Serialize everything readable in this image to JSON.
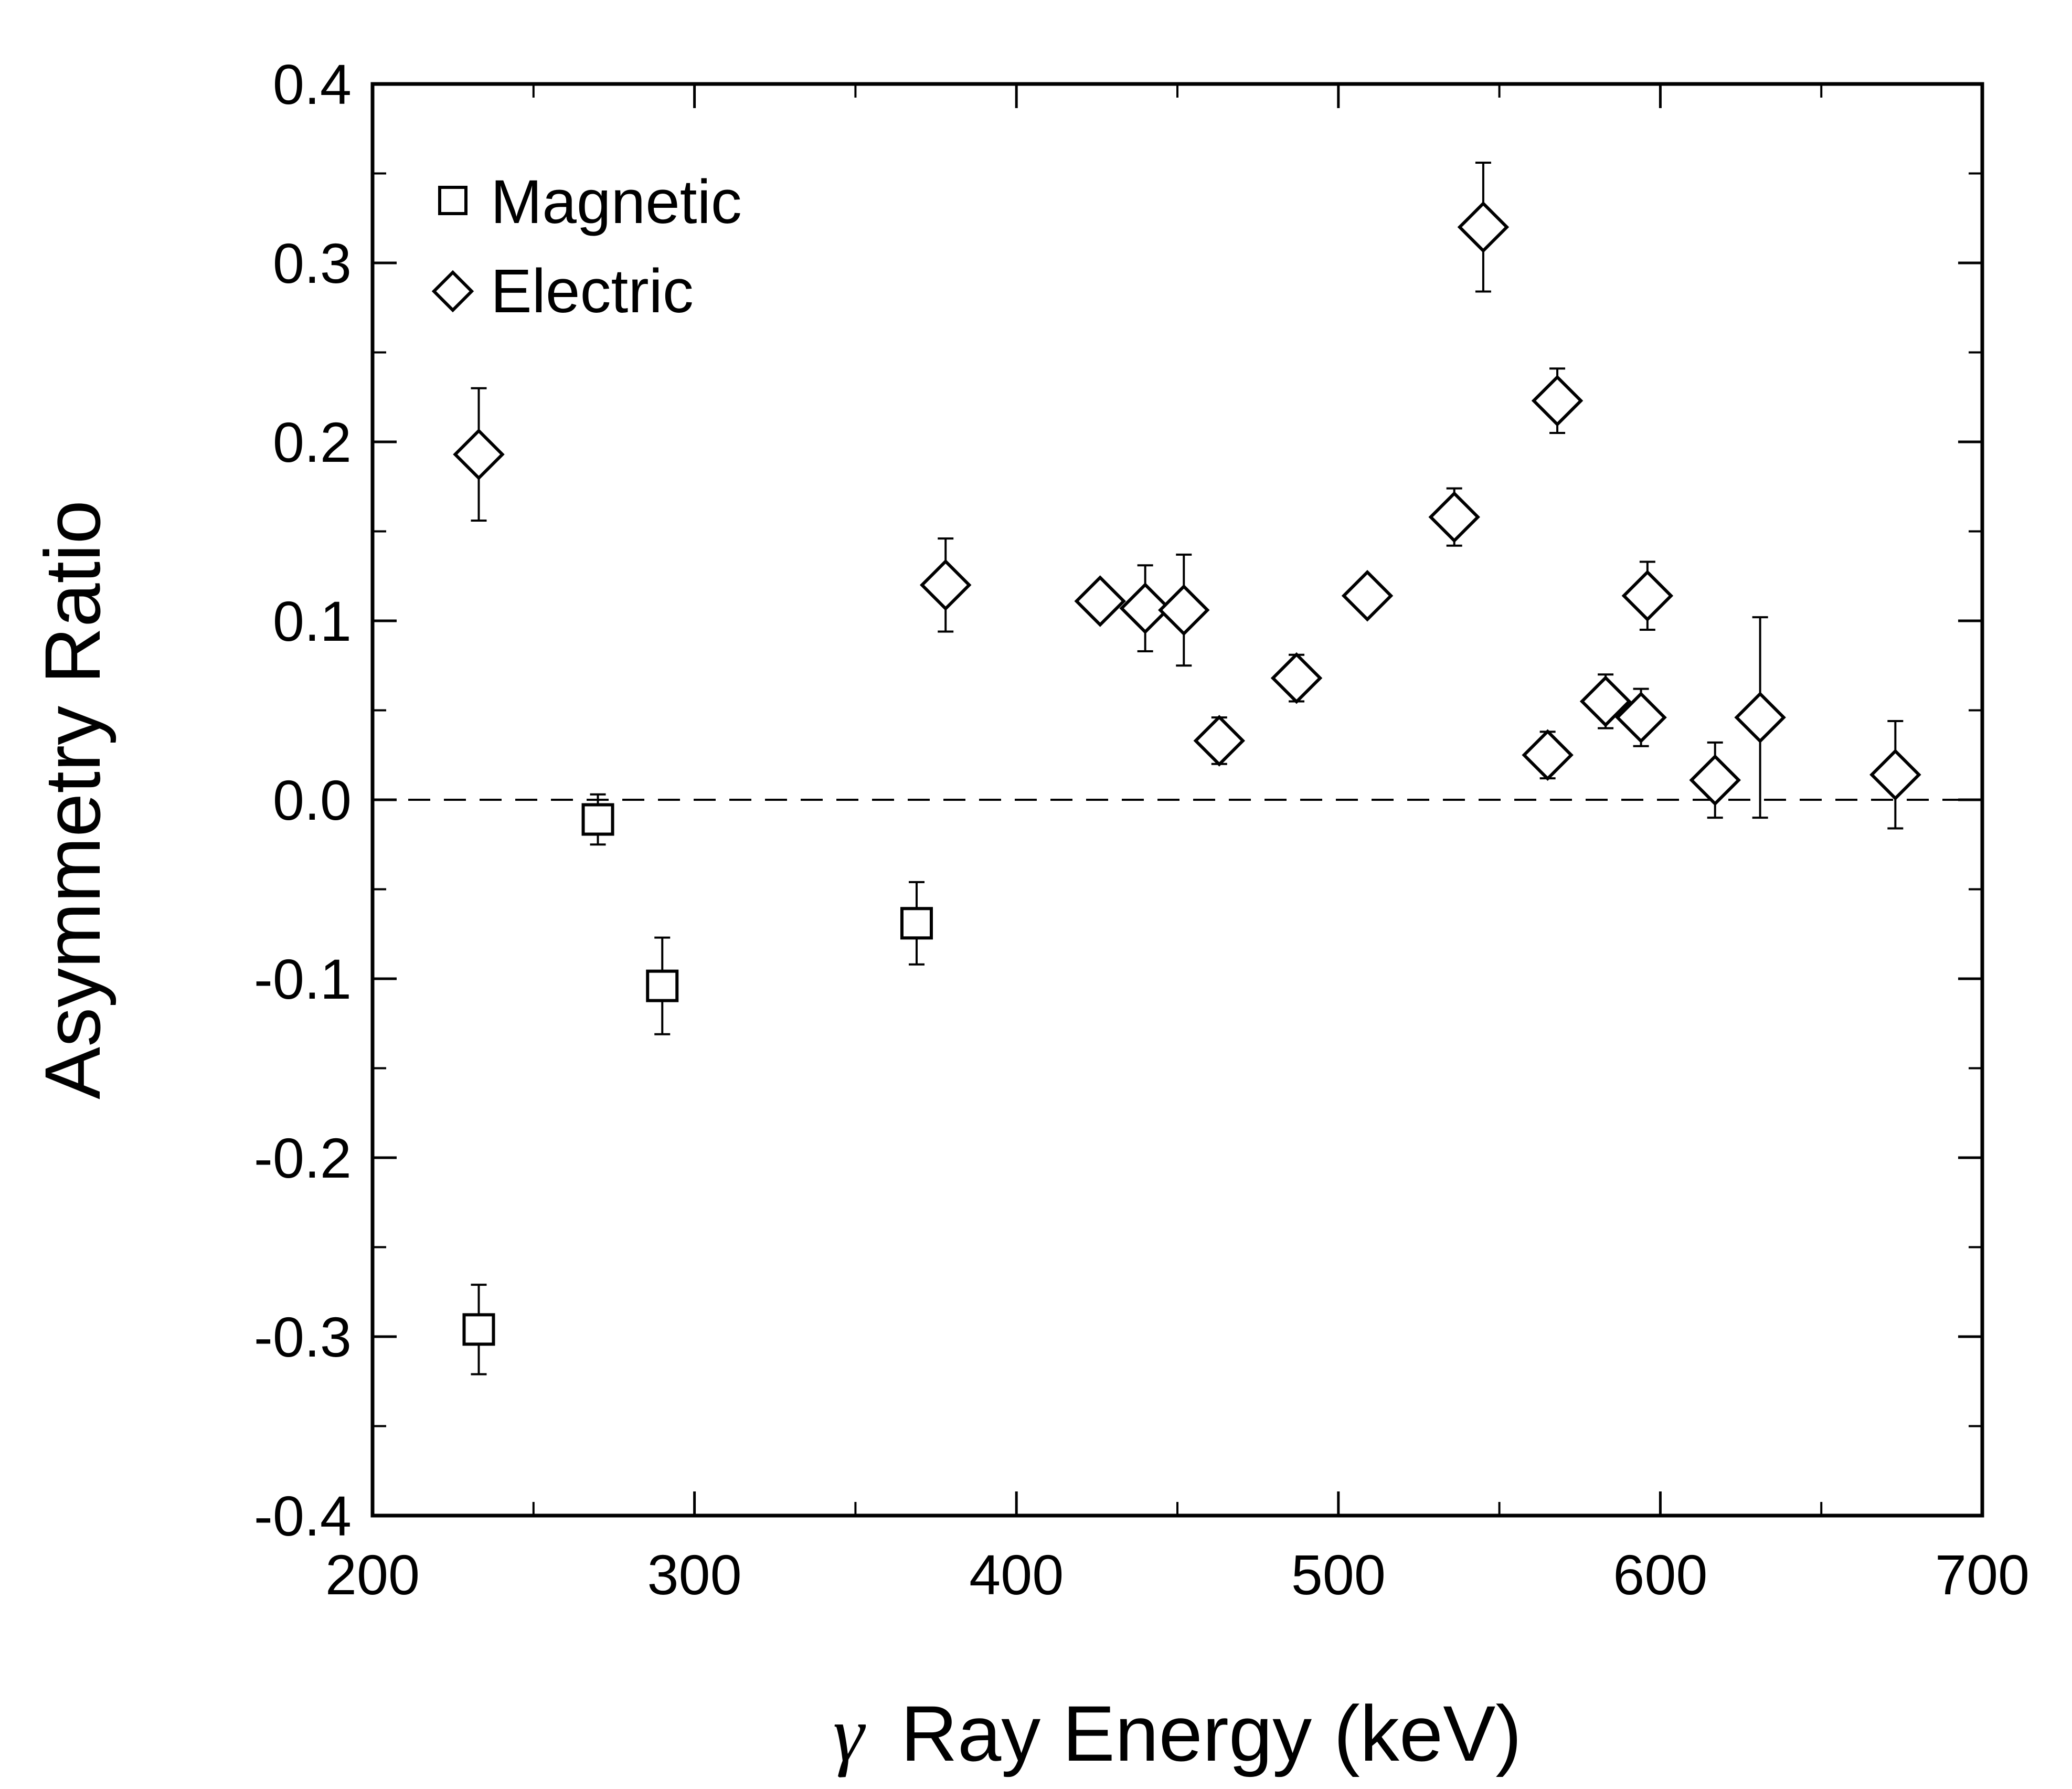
{
  "chart_data": {
    "type": "scatter",
    "title": "",
    "xlabel_symbol": "γ",
    "xlabel": "Ray Energy (keV)",
    "ylabel": "Asymmetry Ratio",
    "xlim": [
      200,
      700
    ],
    "ylim": [
      -0.4,
      0.4
    ],
    "x_ticks": [
      200,
      300,
      400,
      500,
      600,
      700
    ],
    "x_tick_labels": [
      "200",
      "300",
      "400",
      "500",
      "600",
      "700"
    ],
    "y_ticks": [
      -0.4,
      -0.3,
      -0.2,
      -0.1,
      0.0,
      0.1,
      0.2,
      0.3,
      0.4
    ],
    "y_tick_labels": [
      "-0.4",
      "-0.3",
      "-0.2",
      "-0.1",
      "0.0",
      "0.1",
      "0.2",
      "0.3",
      "0.4"
    ],
    "x_minor_step": 50,
    "y_minor_step": 0.05,
    "reference_line": {
      "y": 0.0,
      "style": "dashed"
    },
    "legend_position": "top-left",
    "series": [
      {
        "name": "Magnetic",
        "marker": "square",
        "points": [
          {
            "x": 233,
            "y": -0.296,
            "err_low": 0.025,
            "err_high": 0.025
          },
          {
            "x": 270,
            "y": -0.011,
            "err_low": 0.014,
            "err_high": 0.014
          },
          {
            "x": 290,
            "y": -0.104,
            "err_low": 0.027,
            "err_high": 0.027
          },
          {
            "x": 369,
            "y": -0.069,
            "err_low": 0.023,
            "err_high": 0.023
          }
        ]
      },
      {
        "name": "Electric",
        "marker": "diamond",
        "points": [
          {
            "x": 233,
            "y": 0.193,
            "err_low": 0.037,
            "err_high": 0.037
          },
          {
            "x": 378,
            "y": 0.12,
            "err_low": 0.026,
            "err_high": 0.026
          },
          {
            "x": 426,
            "y": 0.111,
            "err_low": 0.0,
            "err_high": 0.0
          },
          {
            "x": 440,
            "y": 0.107,
            "err_low": 0.024,
            "err_high": 0.024
          },
          {
            "x": 452,
            "y": 0.106,
            "err_low": 0.031,
            "err_high": 0.031
          },
          {
            "x": 463,
            "y": 0.033,
            "err_low": 0.013,
            "err_high": 0.013
          },
          {
            "x": 487,
            "y": 0.068,
            "err_low": 0.013,
            "err_high": 0.013
          },
          {
            "x": 509,
            "y": 0.114,
            "err_low": 0.0,
            "err_high": 0.0
          },
          {
            "x": 536,
            "y": 0.158,
            "err_low": 0.016,
            "err_high": 0.016
          },
          {
            "x": 545,
            "y": 0.32,
            "err_low": 0.036,
            "err_high": 0.036
          },
          {
            "x": 565,
            "y": 0.025,
            "err_low": 0.013,
            "err_high": 0.013
          },
          {
            "x": 568,
            "y": 0.223,
            "err_low": 0.018,
            "err_high": 0.018
          },
          {
            "x": 583,
            "y": 0.055,
            "err_low": 0.015,
            "err_high": 0.015
          },
          {
            "x": 594,
            "y": 0.046,
            "err_low": 0.016,
            "err_high": 0.016
          },
          {
            "x": 596,
            "y": 0.114,
            "err_low": 0.019,
            "err_high": 0.019
          },
          {
            "x": 617,
            "y": 0.011,
            "err_low": 0.021,
            "err_high": 0.021
          },
          {
            "x": 631,
            "y": 0.046,
            "err_low": 0.056,
            "err_high": 0.056
          },
          {
            "x": 673,
            "y": 0.014,
            "err_low": 0.03,
            "err_high": 0.03
          }
        ]
      }
    ]
  }
}
